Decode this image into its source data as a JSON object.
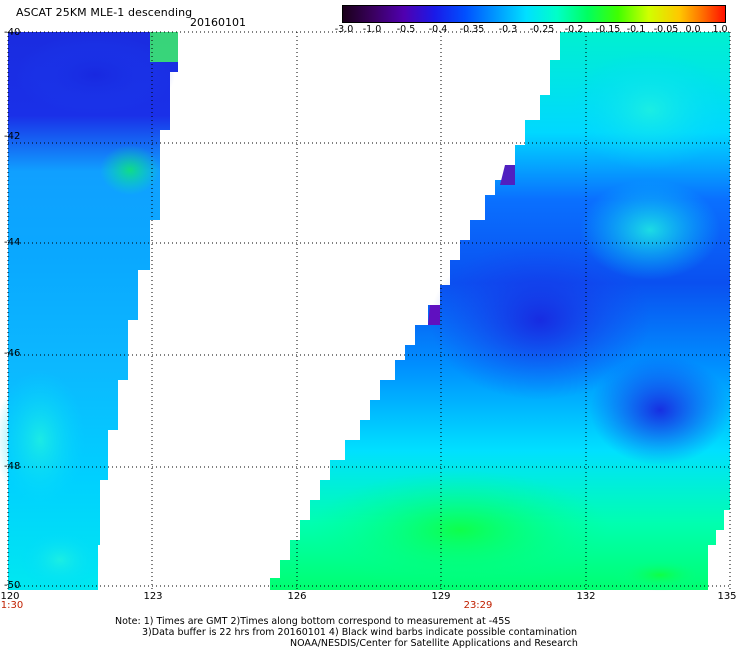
{
  "header": {
    "title": "ASCAT 25KM MLE-1 descending",
    "date": "20160101"
  },
  "colorbar": {
    "labels": [
      "-3.0",
      "-1.0",
      "-0.5",
      "-0.4",
      "-0.35",
      "-0.3",
      "-0.25",
      "-0.2",
      "-0.15",
      "-0.1",
      "-0.05",
      "0.0",
      "1.0"
    ],
    "colors": [
      "#1a001a",
      "#3a0060",
      "#5000b0",
      "#2020e0",
      "#0050ff",
      "#0090ff",
      "#00d8ff",
      "#00ffd0",
      "#00ff80",
      "#30ff00",
      "#c0ff00",
      "#ffd000",
      "#ff8000",
      "#ff2000"
    ]
  },
  "axes": {
    "lat_labels": [
      "-40",
      "-42",
      "-44",
      "-46",
      "-48",
      "-50"
    ],
    "lon_labels": [
      "120",
      "123",
      "126",
      "129",
      "132",
      "135"
    ],
    "time_labels": [
      "1:30",
      "23:29"
    ]
  },
  "notes": {
    "line1": "Note: 1) Times are GMT 2)Times along bottom correspond to measurement at -45S",
    "line2": "3)Data buffer is 22 hrs from 20160101 4) Black wind barbs indicate possible contamination",
    "line3": "NOAA/NESDIS/Center for Satellite Applications and Research"
  }
}
